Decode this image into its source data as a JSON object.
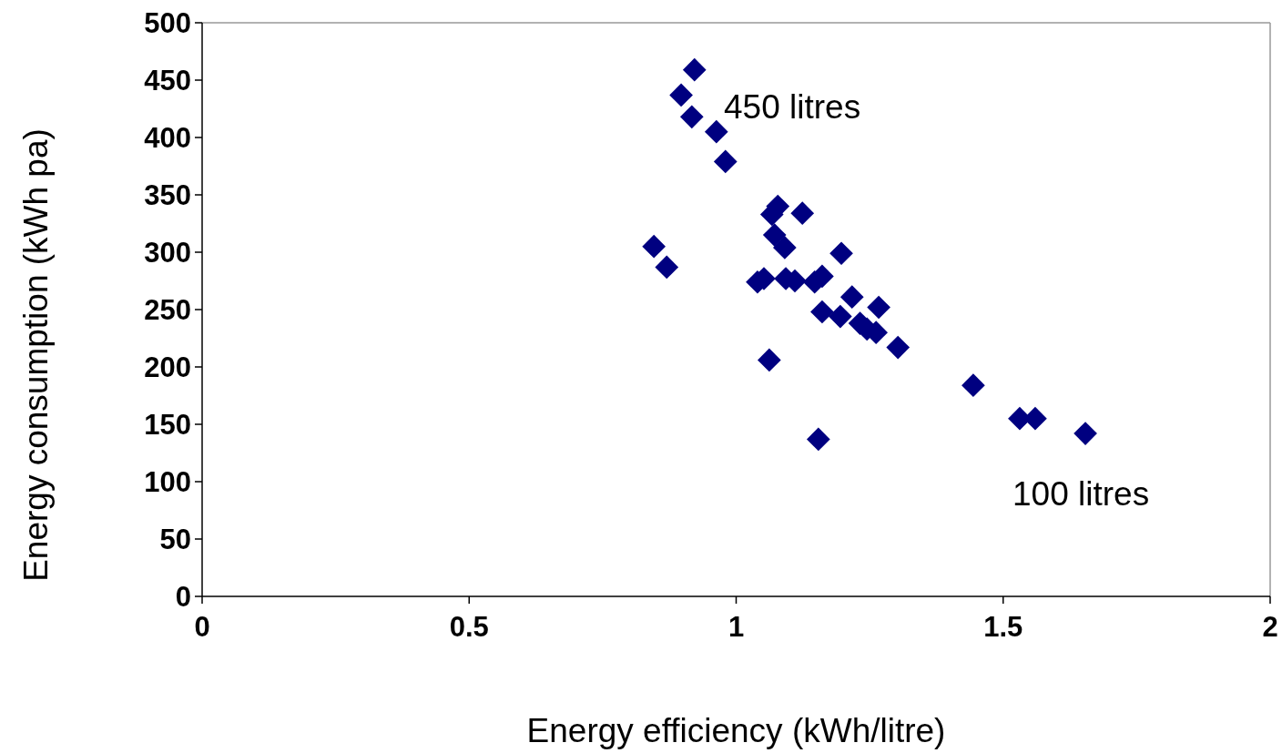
{
  "chart_data": {
    "type": "scatter",
    "xlabel": "Energy efficiency (kWh/litre)",
    "ylabel": "Energy consumption (kWh pa)",
    "xlim": [
      0,
      2
    ],
    "xticks": [
      0,
      0.5,
      1,
      1.5,
      2
    ],
    "ylim": [
      0,
      500
    ],
    "yticks": [
      0,
      50,
      100,
      150,
      200,
      250,
      300,
      350,
      400,
      450,
      500
    ],
    "marker": "diamond",
    "grid": false,
    "annotations": [
      "450 litres",
      "100 litres"
    ],
    "series": [
      {
        "color": "#000080",
        "x": [
          0.922,
          0.897,
          0.917,
          0.963,
          0.98,
          0.846,
          0.87,
          1.078,
          1.067,
          1.124,
          1.072,
          1.091,
          1.197,
          1.04,
          1.052,
          1.093,
          1.11,
          1.147,
          1.161,
          1.217,
          1.161,
          1.195,
          1.267,
          1.232,
          1.245,
          1.262,
          1.303,
          1.062,
          1.154,
          1.444,
          1.531,
          1.56,
          1.654
        ],
        "values": [
          459,
          437,
          418,
          405,
          379,
          305,
          287,
          340,
          333,
          334,
          315,
          304,
          299,
          274,
          277,
          277,
          275,
          274,
          279,
          261,
          248,
          244,
          252,
          238,
          233,
          230,
          217,
          206,
          137,
          184,
          155,
          155,
          142
        ]
      }
    ]
  }
}
